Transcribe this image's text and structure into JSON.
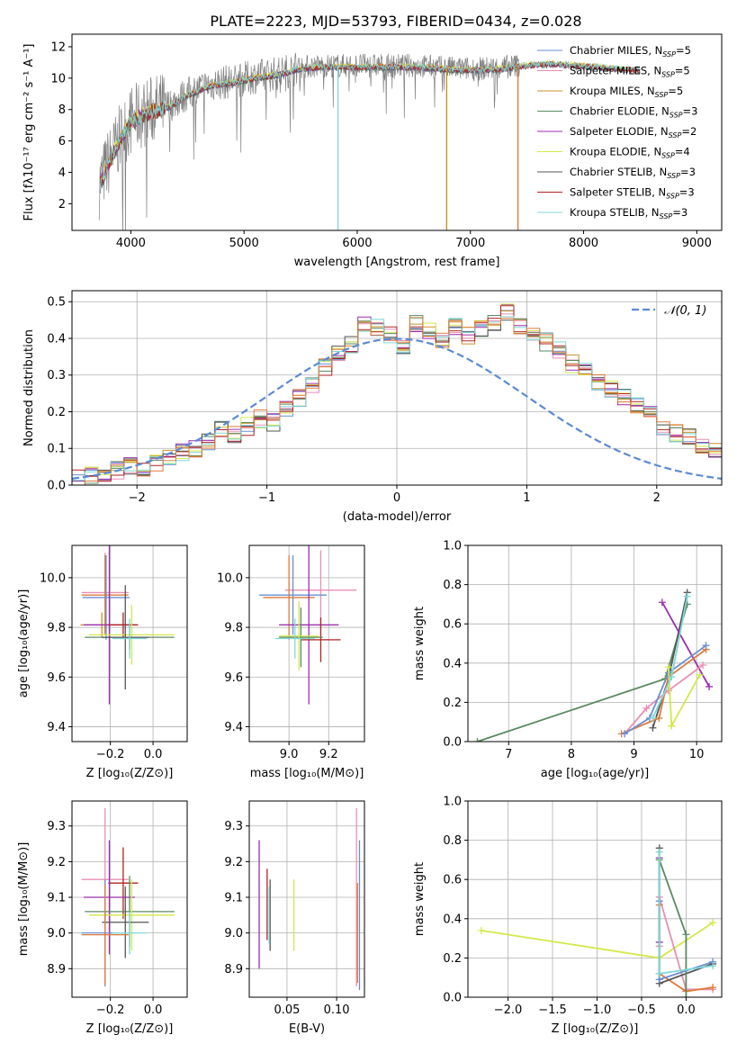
{
  "figure": {
    "title": "PLATE=2223, MJD=53793, FIBERID=0434, z=0.028"
  },
  "chart_data": [
    {
      "id": "spectrum",
      "type": "line",
      "xlabel": "wavelength [Angstrom, rest frame]",
      "ylabel": "Flux [fλ10⁻¹⁷ erg cm⁻² s⁻¹ A⁻¹]",
      "xlim": [
        3480,
        9220
      ],
      "ylim": [
        0.3,
        12.8
      ],
      "xticks": [
        4000,
        5000,
        6000,
        7000,
        8000,
        9000
      ],
      "yticks": [
        2,
        4,
        6,
        8,
        10,
        12
      ],
      "grid": false,
      "legend_position": "top-right",
      "data_series": {
        "name": "",
        "color": "#808080"
      },
      "legend": [
        {
          "label": "Chabrier MILES, N",
          "sub": "SSP",
          "tail": "=5",
          "color": "#6a8fd0"
        },
        {
          "label": "Salpeter MILES, N",
          "sub": "SSP",
          "tail": "=5",
          "color": "#e88fb4"
        },
        {
          "label": "Kroupa MILES, N",
          "sub": "SSP",
          "tail": "=5",
          "color": "#c8902a"
        },
        {
          "label": "Chabrier ELODIE, N",
          "sub": "SSP",
          "tail": "=3",
          "color": "#5a8a60"
        },
        {
          "label": "Salpeter ELODIE, N",
          "sub": "SSP",
          "tail": "=2",
          "color": "#9b2fae"
        },
        {
          "label": "Kroupa ELODIE, N",
          "sub": "SSP",
          "tail": "=4",
          "color": "#d4e84a"
        },
        {
          "label": "Chabrier STELIB, N",
          "sub": "SSP",
          "tail": "=3",
          "color": "#555555"
        },
        {
          "label": "Salpeter STELIB, N",
          "sub": "SSP",
          "tail": "=3",
          "color": "#b22222"
        },
        {
          "label": "Kroupa STELIB, N",
          "sub": "SSP",
          "tail": "=3",
          "color": "#7ed9d9"
        }
      ],
      "continuum": [
        [
          3720,
          3.2
        ],
        [
          3800,
          4.6
        ],
        [
          3900,
          6.1
        ],
        [
          4000,
          7.3
        ],
        [
          4100,
          7.7
        ],
        [
          4200,
          8.0
        ],
        [
          4350,
          8.3
        ],
        [
          4500,
          9.0
        ],
        [
          4700,
          9.6
        ],
        [
          4900,
          9.8
        ],
        [
          5100,
          10.1
        ],
        [
          5300,
          10.3
        ],
        [
          5500,
          10.7
        ],
        [
          5700,
          10.8
        ],
        [
          5900,
          10.8
        ],
        [
          6100,
          10.8
        ],
        [
          6300,
          10.8
        ],
        [
          6500,
          10.8
        ],
        [
          6700,
          10.7
        ],
        [
          6900,
          10.6
        ],
        [
          7100,
          10.6
        ],
        [
          7300,
          10.7
        ],
        [
          7500,
          10.9
        ],
        [
          7700,
          11.0
        ],
        [
          7900,
          10.9
        ],
        [
          8100,
          10.8
        ],
        [
          8300,
          10.7
        ],
        [
          8500,
          10.6
        ]
      ],
      "models_end_wavelength": 8500,
      "data_end_wavelength": 7440,
      "dropouts": [
        {
          "wavelength": 5830,
          "color": "#7ed9d9"
        },
        {
          "wavelength": 6790,
          "color": "#c8902a"
        },
        {
          "wavelength": 7420,
          "color": "#e07a3a"
        }
      ]
    },
    {
      "id": "residuals",
      "type": "area",
      "xlabel": "(data-model)/error",
      "ylabel": "Normed distribution",
      "xlim": [
        -2.5,
        2.5
      ],
      "ylim": [
        0,
        0.53
      ],
      "xticks": [
        -2,
        -1,
        0,
        1,
        2
      ],
      "xtick_labels": [
        "−2",
        "−1",
        "0",
        "1",
        "2"
      ],
      "yticks": [
        0.0,
        0.1,
        0.2,
        0.3,
        0.4,
        0.5
      ],
      "ytick_labels": [
        "0.0",
        "0.1",
        "0.2",
        "0.3",
        "0.4",
        "0.5"
      ],
      "grid": true,
      "legend_position": "top-right",
      "reference_curve": {
        "name": "𝒩(0, 1)",
        "color": "#5b8ad6",
        "dash": true
      },
      "bin_width": 0.1,
      "hist_base": [
        0.018,
        0.025,
        0.03,
        0.04,
        0.05,
        0.045,
        0.06,
        0.07,
        0.09,
        0.1,
        0.12,
        0.15,
        0.14,
        0.16,
        0.18,
        0.17,
        0.21,
        0.24,
        0.27,
        0.32,
        0.36,
        0.38,
        0.44,
        0.43,
        0.41,
        0.37,
        0.44,
        0.42,
        0.4,
        0.43,
        0.41,
        0.43,
        0.44,
        0.47,
        0.43,
        0.42,
        0.39,
        0.37,
        0.33,
        0.31,
        0.28,
        0.26,
        0.24,
        0.22,
        0.19,
        0.16,
        0.14,
        0.13,
        0.1,
        0.09,
        0.08,
        0.06,
        0.06,
        0.05,
        0.04,
        0.045,
        0.035,
        0.03,
        0.025,
        0.02
      ],
      "series_colors": [
        "#6a8fd0",
        "#e88fb4",
        "#c8902a",
        "#5a8a60",
        "#9b2fae",
        "#d4e84a",
        "#555555",
        "#b22222",
        "#7ed9d9",
        "#e07a3a"
      ]
    },
    {
      "id": "age-vs-Z",
      "type": "scatter",
      "xlabel": "Z [log₁₀(Z/Z⊙)]",
      "ylabel": "age  [log₁₀(age/yr)]",
      "xlim": [
        -0.38,
        0.16
      ],
      "ylim": [
        9.34,
        10.13
      ],
      "xticks": [
        -0.2,
        0.0
      ],
      "xtick_labels": [
        "−0.2",
        "0.0"
      ],
      "yticks": [
        9.4,
        9.6,
        9.8,
        10.0
      ],
      "ytick_labels": [
        "9.4",
        "9.6",
        "9.8",
        "10.0"
      ],
      "grid": true,
      "points": [
        {
          "x": -0.225,
          "y": 9.94,
          "xerr": 0.11,
          "yerr": 0.16,
          "color": "#e88fb4"
        },
        {
          "x": -0.225,
          "y": 9.93,
          "xerr": 0.11,
          "yerr": 0.16,
          "color": "#e07a3a"
        },
        {
          "x": -0.22,
          "y": 9.92,
          "xerr": 0.11,
          "yerr": 0.17,
          "color": "#6a8fd0"
        },
        {
          "x": -0.24,
          "y": 9.81,
          "xerr": 0.1,
          "yerr": 0.05,
          "color": "#c8902a"
        },
        {
          "x": -0.205,
          "y": 9.81,
          "xerr": 0.12,
          "yerr": 0.32,
          "color": "#9b2fae"
        },
        {
          "x": -0.14,
          "y": 9.81,
          "xerr": 0.07,
          "yerr": 0.05,
          "color": "#b22222"
        },
        {
          "x": -0.1,
          "y": 9.77,
          "xerr": 0.2,
          "yerr": 0.12,
          "color": "#d4e84a"
        },
        {
          "x": -0.11,
          "y": 9.76,
          "xerr": 0.21,
          "yerr": 0.05,
          "color": "#5a8a60"
        },
        {
          "x": -0.13,
          "y": 9.76,
          "xerr": 0.11,
          "yerr": 0.21,
          "color": "#555555"
        },
        {
          "x": -0.11,
          "y": 9.755,
          "xerr": 0.08,
          "yerr": 0.08,
          "color": "#7ed9d9"
        }
      ]
    },
    {
      "id": "age-vs-mass",
      "type": "scatter",
      "xlabel": "mass [log₁₀(M/M⊙)]",
      "ylabel": "",
      "xlim": [
        8.8,
        9.38
      ],
      "ylim": [
        9.34,
        10.13
      ],
      "xticks": [
        9.0,
        9.2
      ],
      "xtick_labels": [
        "9.0",
        "9.2"
      ],
      "yticks": [
        9.4,
        9.6,
        9.8,
        10.0
      ],
      "ytick_labels": [
        "9.4",
        "9.6",
        "9.8",
        "10.0"
      ],
      "grid": true,
      "points": [
        {
          "x": 9.16,
          "y": 9.95,
          "xerr": 0.18,
          "yerr": 0.16,
          "color": "#e88fb4"
        },
        {
          "x": 9.02,
          "y": 9.93,
          "xerr": 0.17,
          "yerr": 0.16,
          "color": "#6a8fd0"
        },
        {
          "x": 9.0,
          "y": 9.92,
          "xerr": 0.13,
          "yerr": 0.17,
          "color": "#e07a3a"
        },
        {
          "x": 9.1,
          "y": 9.81,
          "xerr": 0.15,
          "yerr": 0.32,
          "color": "#9b2fae"
        },
        {
          "x": 9.16,
          "y": 9.75,
          "xerr": 0.1,
          "yerr": 0.09,
          "color": "#b22222"
        },
        {
          "x": 9.06,
          "y": 9.76,
          "xerr": 0.11,
          "yerr": 0.12,
          "color": "#5a8a60"
        },
        {
          "x": 9.05,
          "y": 9.765,
          "xerr": 0.1,
          "yerr": 0.14,
          "color": "#d4e84a"
        },
        {
          "x": 9.03,
          "y": 9.755,
          "xerr": 0.1,
          "yerr": 0.08,
          "color": "#7ed9d9"
        }
      ]
    },
    {
      "id": "weight-vs-age",
      "type": "line",
      "xlabel": "age  [log₁₀(age/yr)]",
      "ylabel": "mass weight",
      "xlim": [
        6.35,
        10.4
      ],
      "ylim": [
        0,
        1.0
      ],
      "xticks": [
        7,
        8,
        9,
        10
      ],
      "xtick_labels": [
        "7",
        "8",
        "9",
        "10"
      ],
      "yticks": [
        0.0,
        0.2,
        0.4,
        0.6,
        0.8,
        1.0
      ],
      "ytick_labels": [
        "0.0",
        "0.2",
        "0.4",
        "0.6",
        "0.8",
        "1.0"
      ],
      "grid": true,
      "series": [
        {
          "color": "#5a8a60",
          "x": [
            6.5,
            9.5,
            9.85
          ],
          "y": [
            0.0,
            0.32,
            0.7
          ]
        },
        {
          "color": "#555555",
          "x": [
            9.3,
            9.55,
            9.85
          ],
          "y": [
            0.07,
            0.32,
            0.76
          ]
        },
        {
          "color": "#9b2fae",
          "x": [
            9.45,
            10.2
          ],
          "y": [
            0.71,
            0.28
          ]
        },
        {
          "color": "#e88fb4",
          "x": [
            8.85,
            9.2,
            9.55,
            10.1
          ],
          "y": [
            0.04,
            0.17,
            0.26,
            0.39
          ]
        },
        {
          "color": "#e07a3a",
          "x": [
            8.8,
            9.4,
            9.55,
            10.15
          ],
          "y": [
            0.04,
            0.12,
            0.33,
            0.47
          ]
        },
        {
          "color": "#6a8fd0",
          "x": [
            8.85,
            9.25,
            9.55,
            10.15
          ],
          "y": [
            0.04,
            0.12,
            0.35,
            0.49
          ]
        },
        {
          "color": "#d4e84a",
          "x": [
            9.6,
            9.55,
            9.6,
            10.05
          ],
          "y": [
            0.08,
            0.38,
            0.08,
            0.34
          ]
        },
        {
          "color": "#7ed9d9",
          "x": [
            9.3,
            9.6,
            9.85
          ],
          "y": [
            0.12,
            0.33,
            0.74
          ]
        }
      ]
    },
    {
      "id": "mass-vs-Z",
      "type": "scatter",
      "xlabel": "Z [log₁₀(Z/Z⊙)]",
      "ylabel": "mass [log₁₀(M/M⊙)]",
      "xlim": [
        -0.38,
        0.16
      ],
      "ylim": [
        8.82,
        9.37
      ],
      "xticks": [
        -0.2,
        0.0
      ],
      "xtick_labels": [
        "−0.2",
        "0.0"
      ],
      "yticks": [
        8.9,
        9.0,
        9.1,
        9.2,
        9.3
      ],
      "ytick_labels": [
        "8.9",
        "9.0",
        "9.1",
        "9.2",
        "9.3"
      ],
      "grid": true,
      "points": [
        {
          "x": -0.225,
          "y": 9.15,
          "xerr": 0.11,
          "yerr": 0.2,
          "color": "#e88fb4"
        },
        {
          "x": -0.14,
          "y": 9.14,
          "xerr": 0.07,
          "yerr": 0.1,
          "color": "#b22222"
        },
        {
          "x": -0.205,
          "y": 9.1,
          "xerr": 0.12,
          "yerr": 0.16,
          "color": "#9b2fae"
        },
        {
          "x": -0.11,
          "y": 9.06,
          "xerr": 0.21,
          "yerr": 0.1,
          "color": "#5a8a60"
        },
        {
          "x": -0.1,
          "y": 9.05,
          "xerr": 0.2,
          "yerr": 0.1,
          "color": "#d4e84a"
        },
        {
          "x": -0.13,
          "y": 9.03,
          "xerr": 0.11,
          "yerr": 0.1,
          "color": "#555555"
        },
        {
          "x": -0.225,
          "y": 9.0,
          "xerr": 0.11,
          "yerr": 0.15,
          "color": "#6a8fd0"
        },
        {
          "x": -0.225,
          "y": 8.995,
          "xerr": 0.11,
          "yerr": 0.14,
          "color": "#e07a3a"
        },
        {
          "x": -0.11,
          "y": 9.0,
          "xerr": 0.08,
          "yerr": 0.06,
          "color": "#7ed9d9"
        }
      ]
    },
    {
      "id": "mass-vs-ebv",
      "type": "scatter",
      "xlabel": "E(B-V)",
      "ylabel": "",
      "xlim": [
        0.012,
        0.128
      ],
      "ylim": [
        8.82,
        9.37
      ],
      "xticks": [
        0.05,
        0.1
      ],
      "xtick_labels": [
        "0.05",
        "0.10"
      ],
      "yticks": [
        8.9,
        9.0,
        9.1,
        9.2,
        9.3
      ],
      "ytick_labels": [
        "8.9",
        "9.0",
        "9.1",
        "9.2",
        "9.3"
      ],
      "grid": true,
      "points": [
        {
          "x": 0.022,
          "y": 9.08,
          "xerr": 0,
          "yerr": 0.18,
          "color": "#9b2fae"
        },
        {
          "x": 0.03,
          "y": 9.08,
          "xerr": 0,
          "yerr": 0.1,
          "color": "#b22222"
        },
        {
          "x": 0.033,
          "y": 9.05,
          "xerr": 0,
          "yerr": 0.1,
          "color": "#555555"
        },
        {
          "x": 0.032,
          "y": 9.05,
          "xerr": 0,
          "yerr": 0.08,
          "color": "#7ed9d9"
        },
        {
          "x": 0.057,
          "y": 9.05,
          "xerr": 0,
          "yerr": 0.1,
          "color": "#d4e84a"
        },
        {
          "x": 0.12,
          "y": 9.1,
          "xerr": 0,
          "yerr": 0.25,
          "color": "#e88fb4"
        },
        {
          "x": 0.121,
          "y": 9.0,
          "xerr": 0,
          "yerr": 0.14,
          "color": "#e07a3a"
        },
        {
          "x": 0.123,
          "y": 9.05,
          "xerr": 0,
          "yerr": 0.21,
          "color": "#6a8fd0"
        }
      ]
    },
    {
      "id": "weight-vs-Z",
      "type": "line",
      "xlabel": "Z [log₁₀(Z/Z⊙)]",
      "ylabel": "mass weight",
      "xlim": [
        -2.45,
        0.4
      ],
      "ylim": [
        0,
        1.0
      ],
      "xticks": [
        -2.0,
        -1.5,
        -1.0,
        -0.5,
        0.0
      ],
      "xtick_labels": [
        "−2.0",
        "−1.5",
        "−1.0",
        "−0.5",
        "0.0"
      ],
      "yticks": [
        0.0,
        0.2,
        0.4,
        0.6,
        0.8,
        1.0
      ],
      "ytick_labels": [
        "0.0",
        "0.2",
        "0.4",
        "0.6",
        "0.8",
        "1.0"
      ],
      "grid": true,
      "series": [
        {
          "color": "#d4e84a",
          "x": [
            -2.3,
            -0.3,
            0.3
          ],
          "y": [
            0.34,
            0.2,
            0.38
          ]
        },
        {
          "color": "#e88fb4",
          "x": [
            -0.3,
            -0.3,
            0.0,
            0.3
          ],
          "y": [
            0.26,
            0.51,
            0.04,
            0.04
          ]
        },
        {
          "color": "#e07a3a",
          "x": [
            -0.3,
            -0.3,
            0.0,
            0.3
          ],
          "y": [
            0.47,
            0.12,
            0.03,
            0.05
          ]
        },
        {
          "color": "#9b2fae",
          "x": [
            -0.3,
            -0.3
          ],
          "y": [
            0.71,
            0.28
          ]
        },
        {
          "color": "#555555",
          "x": [
            -0.3,
            -0.3,
            0.3
          ],
          "y": [
            0.76,
            0.07,
            0.17
          ]
        },
        {
          "color": "#5a8a60",
          "x": [
            -0.3,
            0.0,
            0.0
          ],
          "y": [
            0.7,
            0.32,
            0.0
          ]
        },
        {
          "color": "#6a8fd0",
          "x": [
            -0.3,
            -0.3,
            0.3
          ],
          "y": [
            0.49,
            0.09,
            0.18
          ]
        },
        {
          "color": "#7ed9d9",
          "x": [
            -0.3,
            -0.3,
            0.3
          ],
          "y": [
            0.74,
            0.12,
            0.16
          ]
        }
      ]
    }
  ]
}
